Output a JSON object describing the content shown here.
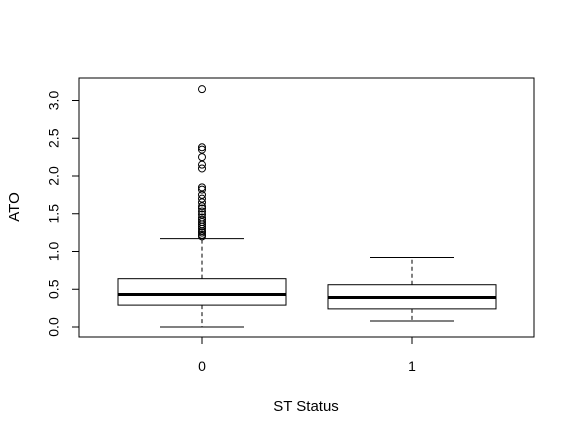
{
  "chart_data": {
    "type": "boxplot",
    "title": "",
    "xlabel": "ST Status",
    "ylabel": "ATO",
    "categories": [
      "0",
      "1"
    ],
    "ylim": [
      -0.1,
      3.25
    ],
    "yticks": [
      0.0,
      0.5,
      1.0,
      1.5,
      2.0,
      2.5,
      3.0
    ],
    "ytick_labels": [
      "0.0",
      "0.5",
      "1.0",
      "1.5",
      "2.0",
      "2.5",
      "3.0"
    ],
    "grid": false,
    "legend": "none",
    "boxes": [
      {
        "category": "0",
        "whisker_low": 0.0,
        "q1": 0.29,
        "median": 0.43,
        "q3": 0.64,
        "whisker_high": 1.17,
        "outliers": [
          1.2,
          1.22,
          1.25,
          1.27,
          1.3,
          1.33,
          1.36,
          1.39,
          1.42,
          1.45,
          1.49,
          1.53,
          1.57,
          1.6,
          1.65,
          1.7,
          1.75,
          1.82,
          1.85,
          2.1,
          2.15,
          2.25,
          2.35,
          2.38,
          3.15
        ]
      },
      {
        "category": "1",
        "whisker_low": 0.08,
        "q1": 0.24,
        "median": 0.39,
        "q3": 0.56,
        "whisker_high": 0.92,
        "outliers": []
      }
    ]
  }
}
